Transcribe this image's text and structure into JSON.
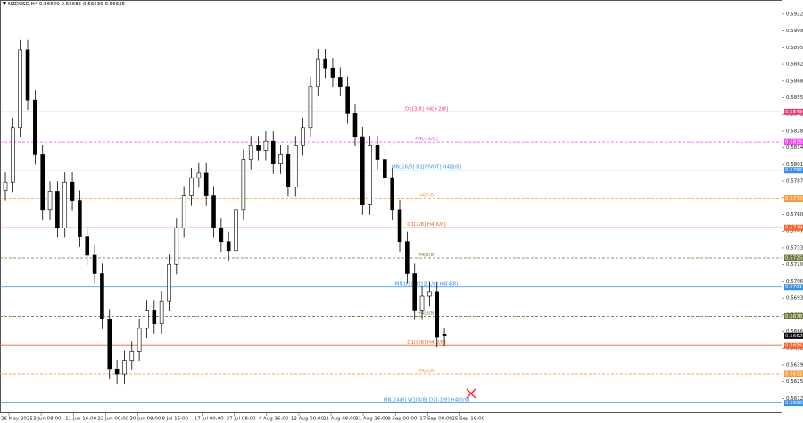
{
  "chart_data": {
    "type": "candlestick",
    "title": "NZDUSD,H4  0.56640 0.56685 0.56539 0.56625",
    "ylim": [
      0.56,
      0.5934
    ],
    "yticks": [
      0.59225,
      {
        "value": 0.5909,
        "label": "0.59090"
      },
      0.58955,
      {
        "value": 0.5882,
        "label": "0.58820"
      },
      0.58685,
      {
        "value": 0.5855,
        "label": "0.58550"
      },
      0.58415,
      {
        "value": 0.5828,
        "label": "0.58280"
      },
      0.58145,
      {
        "value": 0.5801,
        "label": "0.58010"
      },
      0.57875,
      {
        "value": 0.5774,
        "label": "0.57740"
      },
      0.57605,
      {
        "value": 0.5747,
        "label": "0.57470"
      },
      0.57335,
      {
        "value": 0.572,
        "label": "0.57200"
      },
      0.57065,
      {
        "value": 0.5693,
        "label": "0.56930"
      },
      0.56795,
      {
        "value": 0.5666,
        "label": "0.56660"
      },
      0.56525,
      {
        "value": 0.5639,
        "label": "0.56390"
      },
      0.56255,
      {
        "value": 0.5612,
        "label": "0.56120"
      }
    ],
    "x_labels": [
      "26 May 2025",
      "3 Jun 08:00",
      "11 Jun 16:00",
      "22 Jun 00:00",
      "30 Jun 08:00",
      "8 Jul 16:00",
      "17 Jul 00:00",
      "27 Jul 08:00",
      "4 Aug 16:00",
      "13 Aug 00:00",
      "21 Aug 08:00",
      "31 Aug 16:00",
      "9 Sep 00:00",
      "17 Sep 08:00",
      "25 Sep 16:00"
    ],
    "up_color": "#ffffff",
    "down_color": "#000000",
    "candles": [
      [
        0.578,
        0.57947,
        0.5772,
        0.57867
      ],
      [
        0.57867,
        0.5839,
        0.57787,
        0.5831
      ],
      [
        0.5831,
        0.59017,
        0.5823,
        0.58937
      ],
      [
        0.58937,
        0.59017,
        0.58451,
        0.58531
      ],
      [
        0.58531,
        0.58611,
        0.58009,
        0.58089
      ],
      [
        0.58089,
        0.58169,
        0.57566,
        0.57646
      ],
      [
        0.57646,
        0.57873,
        0.57566,
        0.57793
      ],
      [
        0.57793,
        0.57873,
        0.57418,
        0.57498
      ],
      [
        0.57498,
        0.57947,
        0.57418,
        0.57867
      ],
      [
        0.57867,
        0.57947,
        0.5764,
        0.5772
      ],
      [
        0.5772,
        0.578,
        0.57344,
        0.57424
      ],
      [
        0.57424,
        0.57504,
        0.57197,
        0.57277
      ],
      [
        0.57277,
        0.57357,
        0.57049,
        0.57129
      ],
      [
        0.57129,
        0.57209,
        0.5668,
        0.5676
      ],
      [
        0.5676,
        0.5684,
        0.56274,
        0.56354
      ],
      [
        0.56354,
        0.56434,
        0.56237,
        0.56317
      ],
      [
        0.56317,
        0.56508,
        0.56237,
        0.56428
      ],
      [
        0.56428,
        0.56582,
        0.56348,
        0.56502
      ],
      [
        0.56502,
        0.56766,
        0.56422,
        0.56686
      ],
      [
        0.56686,
        0.56914,
        0.56606,
        0.56834
      ],
      [
        0.56834,
        0.56914,
        0.56643,
        0.56723
      ],
      [
        0.56723,
        0.56988,
        0.56643,
        0.56908
      ],
      [
        0.56908,
        0.57283,
        0.56828,
        0.57203
      ],
      [
        0.57203,
        0.57578,
        0.57123,
        0.57498
      ],
      [
        0.57498,
        0.57836,
        0.57418,
        0.57756
      ],
      [
        0.57756,
        0.57984,
        0.57676,
        0.57904
      ],
      [
        0.57904,
        0.58021,
        0.57824,
        0.57941
      ],
      [
        0.57941,
        0.58021,
        0.57676,
        0.57756
      ],
      [
        0.57756,
        0.57836,
        0.57418,
        0.57498
      ],
      [
        0.57498,
        0.57578,
        0.57307,
        0.57387
      ],
      [
        0.57387,
        0.57467,
        0.57234,
        0.57314
      ],
      [
        0.57314,
        0.57726,
        0.57234,
        0.57646
      ],
      [
        0.57646,
        0.58132,
        0.57566,
        0.58052
      ],
      [
        0.58052,
        0.58242,
        0.57972,
        0.58162
      ],
      [
        0.58162,
        0.58242,
        0.58045,
        0.58125
      ],
      [
        0.58125,
        0.58279,
        0.58045,
        0.58199
      ],
      [
        0.58199,
        0.58279,
        0.57935,
        0.58015
      ],
      [
        0.58015,
        0.58169,
        0.57935,
        0.58089
      ],
      [
        0.58089,
        0.58169,
        0.5775,
        0.5783
      ],
      [
        0.5783,
        0.58242,
        0.5775,
        0.58162
      ],
      [
        0.58162,
        0.5839,
        0.58082,
        0.5831
      ],
      [
        0.5831,
        0.58722,
        0.5823,
        0.58642
      ],
      [
        0.58642,
        0.58943,
        0.58562,
        0.58863
      ],
      [
        0.58863,
        0.58943,
        0.5871,
        0.5879
      ],
      [
        0.5879,
        0.5887,
        0.58636,
        0.58716
      ],
      [
        0.58716,
        0.58796,
        0.58562,
        0.58642
      ],
      [
        0.58642,
        0.58722,
        0.58341,
        0.58421
      ],
      [
        0.58421,
        0.58501,
        0.58156,
        0.58236
      ],
      [
        0.58236,
        0.58316,
        0.57603,
        0.57683
      ],
      [
        0.57683,
        0.58242,
        0.57603,
        0.58162
      ],
      [
        0.58162,
        0.58242,
        0.57972,
        0.58052
      ],
      [
        0.58052,
        0.58132,
        0.57824,
        0.57904
      ],
      [
        0.57904,
        0.57984,
        0.57566,
        0.57646
      ],
      [
        0.57646,
        0.57726,
        0.57307,
        0.57387
      ],
      [
        0.57387,
        0.57467,
        0.57049,
        0.57129
      ],
      [
        0.57129,
        0.57209,
        0.56754,
        0.56834
      ],
      [
        0.56834,
        0.57025,
        0.56754,
        0.56945
      ],
      [
        0.56945,
        0.57062,
        0.56865,
        0.56982
      ],
      [
        0.56982,
        0.57062,
        0.56533,
        0.56613
      ],
      [
        0.5664,
        0.56685,
        0.56539,
        0.56625
      ]
    ],
    "levels": [
      {
        "label": "D1[3/8] H4[+2/8]",
        "price": 0.58436,
        "color": "#e0407a",
        "dashed": false
      },
      {
        "label": "H4[+1/8]",
        "price": 0.58192,
        "color": "#ee44ee",
        "dashed": true
      },
      {
        "label": "MN1[6/8] D1[PIVOT] H4[8/8]",
        "price": 0.57964,
        "color": "#3a8ee6",
        "dashed": false
      },
      {
        "label": "H4[7/8]",
        "price": 0.57735,
        "color": "#f59a3c",
        "dashed": true
      },
      {
        "label": "D1[2/8] H4[6/8]",
        "price": 0.57499,
        "color": "#f0602a",
        "dashed": false
      },
      {
        "label": "H4[5/8]",
        "price": 0.57255,
        "color": "#6b7a3a",
        "dashed": true
      },
      {
        "label": "MN1[5/8] D1[1/8] H4[4/8]",
        "price": 0.57019,
        "color": "#3a8ee6",
        "dashed": false
      },
      {
        "label": "H4[3/8]",
        "price": 0.56783,
        "color": "#6b7a3a",
        "dashed": true
      },
      {
        "label": "D1[0/8] H4[2/8]",
        "price": 0.56547,
        "color": "#f0602a",
        "dashed": false
      },
      {
        "label": "H4[1/8]",
        "price": 0.56318,
        "color": "#f59a3c",
        "dashed": true
      },
      {
        "label": "MN1[4/8] W1[4/8] D1[-1/8] H4[0/8]",
        "price": 0.56082,
        "color": "#3a8ee6",
        "dashed": false
      }
    ]
  }
}
